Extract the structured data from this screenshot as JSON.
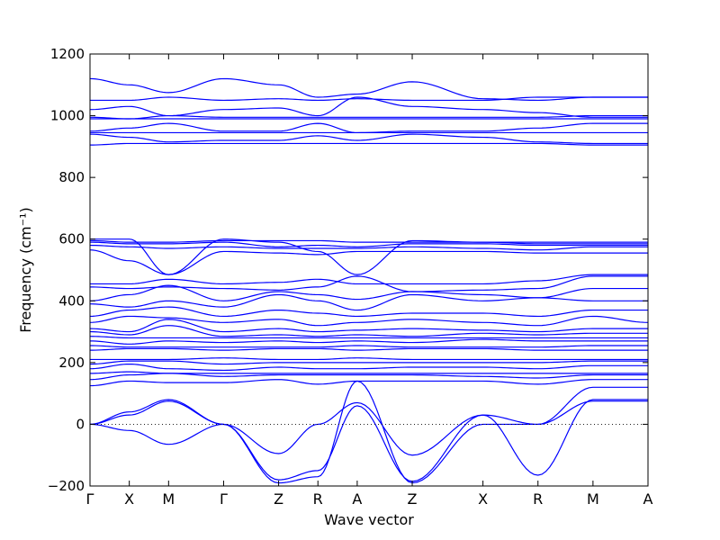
{
  "chart_data": {
    "type": "line",
    "title": "",
    "xlabel": "Wave vector",
    "ylabel": "Frequency (cm⁻¹)",
    "ylim": [
      -200,
      1200
    ],
    "yticks": [
      -200,
      0,
      200,
      400,
      600,
      800,
      1000,
      1200
    ],
    "kpoints": [
      {
        "label": "Γ",
        "pos": 0.0
      },
      {
        "label": "X",
        "pos": 0.5
      },
      {
        "label": "M",
        "pos": 1.0
      },
      {
        "label": "Γ",
        "pos": 1.7
      },
      {
        "label": "Z",
        "pos": 2.4
      },
      {
        "label": "R",
        "pos": 2.9
      },
      {
        "label": "A",
        "pos": 3.4
      },
      {
        "label": "Z",
        "pos": 4.1
      },
      {
        "label": "X",
        "pos": 5.0
      },
      {
        "label": "R",
        "pos": 5.7
      },
      {
        "label": "M",
        "pos": 6.4
      },
      {
        "label": "A",
        "pos": 7.1
      }
    ],
    "xlim": [
      0.0,
      7.1
    ],
    "zero_line": true,
    "line_color": "#0000ff",
    "bands_approx": [
      [
        0,
        1120,
        0.5,
        1100,
        1.0,
        1075,
        1.7,
        1120,
        2.4,
        1100,
        2.9,
        1060,
        3.4,
        1070,
        4.1,
        1110,
        5.0,
        1055,
        5.7,
        1050,
        6.4,
        1060,
        7.1,
        1060
      ],
      [
        0,
        1050,
        0.5,
        1050,
        1.0,
        1060,
        1.7,
        1050,
        2.4,
        1055,
        2.9,
        1050,
        3.4,
        1055,
        4.1,
        1050,
        5.0,
        1050,
        5.7,
        1060,
        6.4,
        1060,
        7.1,
        1060
      ],
      [
        0,
        1020,
        0.5,
        1030,
        1.0,
        1000,
        1.7,
        1020,
        2.4,
        1025,
        2.9,
        1000,
        3.4,
        1060,
        4.1,
        1030,
        5.0,
        1020,
        5.7,
        1010,
        6.4,
        995,
        7.1,
        995
      ],
      [
        0,
        995,
        0.5,
        990,
        1.0,
        1000,
        1.7,
        995,
        2.4,
        995,
        2.9,
        995,
        3.4,
        995,
        4.1,
        995,
        5.0,
        995,
        5.7,
        995,
        6.4,
        1000,
        7.1,
        1000
      ],
      [
        0,
        990,
        0.5,
        990,
        1.0,
        990,
        1.7,
        990,
        2.4,
        990,
        2.9,
        990,
        3.4,
        990,
        4.1,
        990,
        5.0,
        990,
        5.7,
        990,
        6.4,
        990,
        7.1,
        990
      ],
      [
        0,
        950,
        0.5,
        960,
        1.0,
        975,
        1.7,
        950,
        2.4,
        950,
        2.9,
        975,
        3.4,
        945,
        4.1,
        950,
        5.0,
        950,
        5.7,
        960,
        6.4,
        975,
        7.1,
        975
      ],
      [
        0,
        945,
        0.5,
        945,
        1.0,
        945,
        1.7,
        945,
        2.4,
        945,
        2.9,
        945,
        3.4,
        945,
        4.1,
        945,
        5.0,
        945,
        5.7,
        945,
        6.4,
        945,
        7.1,
        945
      ],
      [
        0,
        940,
        0.5,
        930,
        1.0,
        915,
        1.7,
        920,
        2.4,
        920,
        2.9,
        935,
        3.4,
        920,
        4.1,
        940,
        5.0,
        930,
        5.7,
        915,
        6.4,
        910,
        7.1,
        910
      ],
      [
        0,
        905,
        0.5,
        910,
        1.0,
        910,
        1.7,
        910,
        2.4,
        910,
        2.9,
        910,
        3.4,
        910,
        4.1,
        910,
        5.0,
        910,
        5.7,
        910,
        6.4,
        905,
        7.1,
        905
      ],
      [
        0,
        600,
        0.5,
        600,
        1.0,
        485,
        1.7,
        600,
        2.4,
        590,
        2.9,
        560,
        3.4,
        485,
        4.1,
        595,
        5.0,
        590,
        5.7,
        590,
        6.4,
        590,
        7.1,
        590
      ],
      [
        0,
        595,
        0.5,
        590,
        1.0,
        590,
        1.7,
        595,
        2.4,
        595,
        2.9,
        595,
        3.4,
        590,
        4.1,
        590,
        5.0,
        590,
        5.7,
        585,
        6.4,
        585,
        7.1,
        585
      ],
      [
        0,
        590,
        0.5,
        585,
        1.0,
        585,
        1.7,
        590,
        2.4,
        575,
        2.9,
        580,
        3.4,
        575,
        4.1,
        585,
        5.0,
        585,
        5.7,
        580,
        6.4,
        580,
        7.1,
        580
      ],
      [
        0,
        580,
        0.5,
        575,
        1.0,
        570,
        1.7,
        575,
        2.4,
        570,
        2.9,
        570,
        3.4,
        570,
        4.1,
        575,
        5.0,
        570,
        5.7,
        565,
        6.4,
        575,
        7.1,
        575
      ],
      [
        0,
        565,
        0.5,
        530,
        1.0,
        485,
        1.7,
        560,
        2.4,
        555,
        2.9,
        550,
        3.4,
        560,
        4.1,
        560,
        5.0,
        560,
        5.7,
        555,
        6.4,
        555,
        7.1,
        555
      ],
      [
        0,
        455,
        0.5,
        455,
        1.0,
        470,
        1.7,
        455,
        2.4,
        460,
        2.9,
        470,
        3.4,
        455,
        4.1,
        455,
        5.0,
        455,
        5.7,
        465,
        6.4,
        485,
        7.1,
        485
      ],
      [
        0,
        445,
        0.5,
        440,
        1.0,
        445,
        1.7,
        440,
        2.4,
        435,
        2.9,
        445,
        3.4,
        480,
        4.1,
        430,
        5.0,
        435,
        5.7,
        440,
        6.4,
        480,
        7.1,
        480
      ],
      [
        0,
        400,
        0.5,
        420,
        1.0,
        450,
        1.7,
        400,
        2.4,
        430,
        2.9,
        420,
        3.4,
        405,
        4.1,
        430,
        5.0,
        420,
        5.7,
        410,
        6.4,
        440,
        7.1,
        440
      ],
      [
        0,
        390,
        0.5,
        380,
        1.0,
        400,
        1.7,
        380,
        2.4,
        420,
        2.9,
        400,
        3.4,
        370,
        4.1,
        420,
        5.0,
        400,
        5.7,
        410,
        6.4,
        400,
        7.1,
        400
      ],
      [
        0,
        350,
        0.5,
        370,
        1.0,
        380,
        1.7,
        350,
        2.4,
        370,
        2.9,
        360,
        3.4,
        350,
        4.1,
        360,
        5.0,
        360,
        5.7,
        350,
        6.4,
        370,
        7.1,
        370
      ],
      [
        0,
        330,
        0.5,
        350,
        1.0,
        345,
        1.7,
        330,
        2.4,
        340,
        2.9,
        320,
        3.4,
        330,
        4.1,
        340,
        5.0,
        330,
        5.7,
        320,
        6.4,
        350,
        7.1,
        330
      ],
      [
        0,
        310,
        0.5,
        300,
        1.0,
        340,
        1.7,
        300,
        2.4,
        310,
        2.9,
        300,
        3.4,
        305,
        4.1,
        310,
        5.0,
        305,
        5.7,
        300,
        6.4,
        310,
        7.1,
        310
      ],
      [
        0,
        300,
        0.5,
        290,
        1.0,
        320,
        1.7,
        285,
        2.4,
        290,
        2.9,
        285,
        3.4,
        290,
        4.1,
        285,
        5.0,
        295,
        5.7,
        290,
        6.4,
        295,
        7.1,
        295
      ],
      [
        0,
        285,
        0.5,
        280,
        1.0,
        280,
        1.7,
        280,
        2.4,
        280,
        2.9,
        280,
        3.4,
        280,
        4.1,
        280,
        5.0,
        280,
        5.7,
        280,
        6.4,
        280,
        7.1,
        280
      ],
      [
        0,
        270,
        0.5,
        260,
        1.0,
        270,
        1.7,
        265,
        2.4,
        270,
        2.9,
        265,
        3.4,
        270,
        4.1,
        265,
        5.0,
        275,
        5.7,
        270,
        6.4,
        270,
        7.1,
        270
      ],
      [
        0,
        255,
        0.5,
        250,
        1.0,
        250,
        1.7,
        250,
        2.4,
        250,
        2.9,
        250,
        3.4,
        255,
        4.1,
        250,
        5.0,
        250,
        5.7,
        250,
        6.4,
        255,
        7.1,
        255
      ],
      [
        0,
        240,
        0.5,
        245,
        1.0,
        245,
        1.7,
        240,
        2.4,
        245,
        2.9,
        245,
        3.4,
        240,
        4.1,
        245,
        5.0,
        245,
        5.7,
        240,
        6.4,
        240,
        7.1,
        240
      ],
      [
        0,
        210,
        0.5,
        210,
        1.0,
        210,
        1.7,
        215,
        2.4,
        210,
        2.9,
        210,
        3.4,
        215,
        4.1,
        210,
        5.0,
        210,
        5.7,
        210,
        6.4,
        210,
        7.1,
        210
      ],
      [
        0,
        195,
        0.5,
        205,
        1.0,
        205,
        1.7,
        195,
        2.4,
        200,
        2.9,
        200,
        3.4,
        200,
        4.1,
        200,
        5.0,
        200,
        5.7,
        200,
        6.4,
        205,
        7.1,
        205
      ],
      [
        0,
        180,
        0.5,
        195,
        1.0,
        180,
        1.7,
        175,
        2.4,
        185,
        2.9,
        180,
        3.4,
        180,
        4.1,
        185,
        5.0,
        185,
        5.7,
        180,
        6.4,
        190,
        7.1,
        190
      ],
      [
        0,
        165,
        0.5,
        170,
        1.0,
        165,
        1.7,
        165,
        2.4,
        165,
        2.9,
        165,
        3.4,
        165,
        4.1,
        165,
        5.0,
        165,
        5.7,
        165,
        6.4,
        165,
        7.1,
        165
      ],
      [
        0,
        145,
        0.5,
        160,
        1.0,
        165,
        1.7,
        155,
        2.4,
        160,
        2.9,
        160,
        3.4,
        160,
        4.1,
        160,
        5.0,
        155,
        5.7,
        150,
        6.4,
        160,
        7.1,
        160
      ],
      [
        0,
        125,
        0.5,
        140,
        1.0,
        135,
        1.7,
        135,
        2.4,
        145,
        2.9,
        130,
        3.4,
        140,
        4.1,
        140,
        5.0,
        140,
        5.7,
        130,
        6.4,
        145,
        7.1,
        145
      ],
      [
        0,
        0,
        0.5,
        40,
        1.0,
        80,
        1.7,
        0,
        2.4,
        -95,
        2.9,
        0,
        3.4,
        70,
        4.1,
        -100,
        5.0,
        30,
        5.7,
        0,
        6.4,
        75,
        7.1,
        75
      ],
      [
        0,
        0,
        0.5,
        30,
        1.0,
        75,
        1.7,
        0,
        2.4,
        -180,
        2.9,
        -150,
        3.4,
        60,
        4.1,
        -185,
        5.0,
        30,
        5.7,
        -165,
        6.4,
        80,
        7.1,
        80
      ],
      [
        0,
        0,
        0.5,
        -20,
        1.0,
        -65,
        1.7,
        0,
        2.4,
        -190,
        2.9,
        -170,
        3.4,
        140,
        4.1,
        -190,
        5.0,
        0,
        5.7,
        0,
        6.4,
        120,
        7.1,
        120
      ]
    ]
  }
}
